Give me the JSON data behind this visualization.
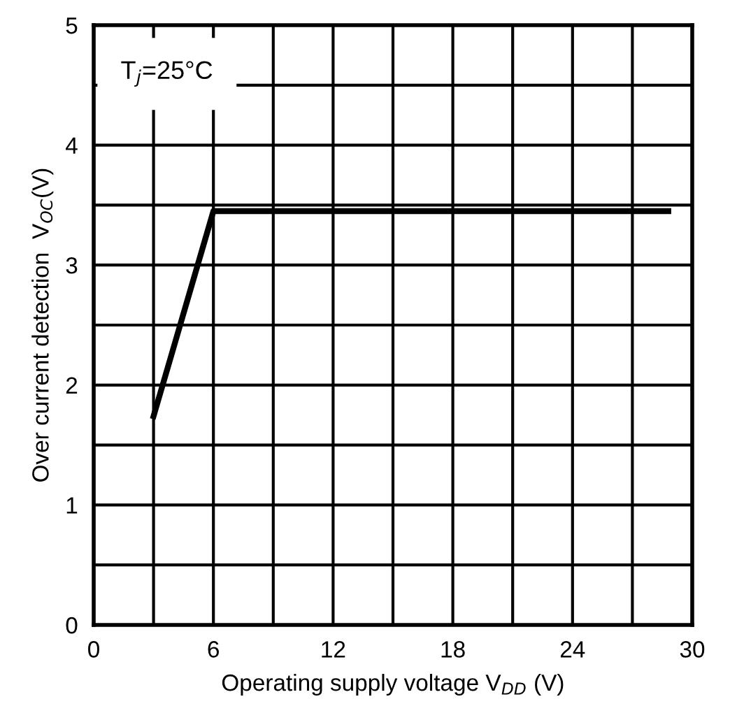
{
  "chart_data": {
    "type": "line",
    "xlabel": "Operating supply voltage V$_{DD}$ (V)",
    "ylabel": "Over current detection  V$_{OC}$(V)",
    "x": [
      3,
      6,
      28.8
    ],
    "series": [
      {
        "color": "#000000",
        "values": [
          1.74,
          3.45,
          3.45
        ]
      }
    ],
    "xlim": [
      0,
      30
    ],
    "ylim": [
      0,
      5
    ],
    "xticks": [
      0,
      {
        "value": 3,
        "label": null
      },
      6,
      {
        "value": 9,
        "label": null
      },
      12,
      {
        "value": 15,
        "label": null
      },
      18,
      {
        "value": 21,
        "label": null
      },
      24,
      {
        "value": 27,
        "label": null
      },
      30
    ],
    "yticks": [
      0,
      {
        "value": 0.5,
        "label": null
      },
      1,
      {
        "value": 1.5,
        "label": null
      },
      2,
      {
        "value": 2.5,
        "label": null
      },
      3,
      {
        "value": 3.5,
        "label": null
      },
      4,
      {
        "value": 4.5,
        "label": null
      },
      5
    ],
    "grid": true,
    "marker": "none",
    "line_style": "solid",
    "annotations": [
      "T$_{j}$=25°C"
    ]
  }
}
